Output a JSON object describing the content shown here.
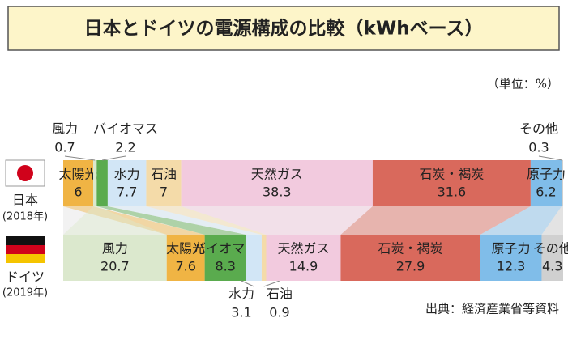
{
  "chart_data": {
    "type": "stacked-bar-horizontal",
    "title": "日本とドイツの電源構成の比較（kWhベース）",
    "unit_note": "（単位：%）",
    "source": "出典：経済産業省等資料",
    "categories": [
      "日本",
      "ドイツ"
    ],
    "category_years": [
      "(2018年)",
      "(2019年)"
    ],
    "series": [
      {
        "name": "太陽光",
        "color": "#f0b444",
        "values": [
          6.0,
          7.6
        ]
      },
      {
        "name": "風力",
        "color": "#dbe8cd",
        "values": [
          0.7,
          20.7
        ]
      },
      {
        "name": "バイオマス",
        "color": "#5aab4e",
        "values": [
          2.2,
          8.3
        ]
      },
      {
        "name": "水力",
        "color": "#d2e6f6",
        "values": [
          7.7,
          3.1
        ]
      },
      {
        "name": "石油",
        "color": "#f4dba9",
        "values": [
          7.0,
          0.9
        ]
      },
      {
        "name": "天然ガス",
        "color": "#f2cade",
        "values": [
          38.3,
          14.9
        ]
      },
      {
        "name": "石炭・褐炭",
        "color": "#d9695c",
        "values": [
          31.6,
          27.9
        ]
      },
      {
        "name": "原子力",
        "color": "#80bde9",
        "values": [
          6.2,
          12.3
        ]
      },
      {
        "name": "その他",
        "color": "#d0d0d0",
        "values": [
          0.3,
          4.3
        ]
      }
    ],
    "orders": [
      [
        0,
        1,
        2,
        3,
        4,
        5,
        6,
        7,
        8
      ],
      [
        1,
        0,
        2,
        3,
        4,
        5,
        6,
        7,
        8
      ]
    ]
  }
}
